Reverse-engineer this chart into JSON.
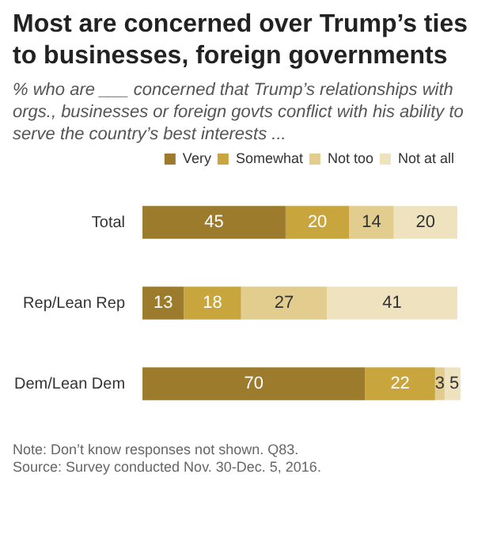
{
  "chart_data": {
    "type": "bar",
    "title": "Most are concerned over Trump’s ties to businesses, foreign governments",
    "subtitle": "% who are ___ concerned that Trump’s relationships with orgs., businesses or foreign govts conflict with his ability to serve the country’s best interests ...",
    "categories": [
      "Total",
      "Rep/Lean Rep",
      "Dem/Lean Dem"
    ],
    "series": [
      {
        "name": "Very",
        "color": "#9c7b2c",
        "values": [
          45,
          13,
          70
        ]
      },
      {
        "name": "Somewhat",
        "color": "#c9a53e",
        "values": [
          20,
          18,
          22
        ]
      },
      {
        "name": "Not too",
        "color": "#e2cd8e",
        "values": [
          14,
          27,
          3
        ]
      },
      {
        "name": "Not at all",
        "color": "#efe3bf",
        "values": [
          20,
          41,
          5
        ]
      }
    ],
    "stacked": true,
    "orientation": "horizontal",
    "legend": "top right",
    "data_labels": true,
    "annotations": [
      "Note: Don’t know responses not shown. Q83.",
      "Source: Survey conducted Nov. 30-Dec. 5, 2016."
    ]
  }
}
